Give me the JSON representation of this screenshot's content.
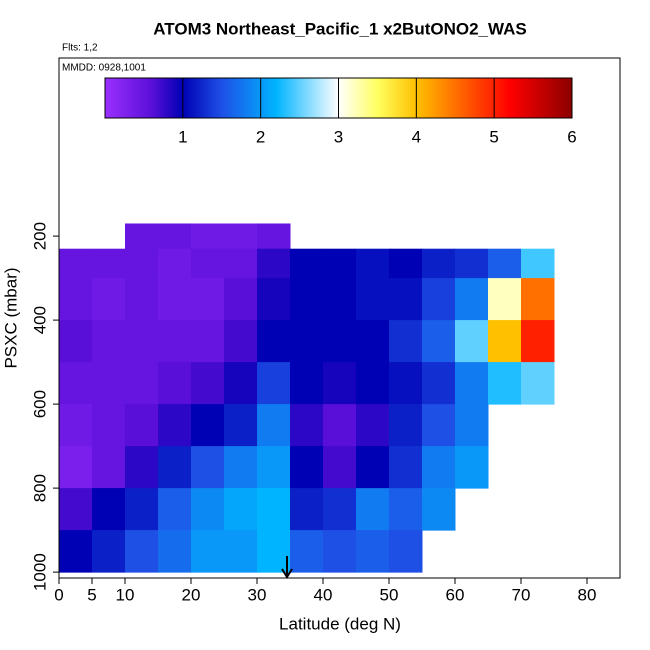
{
  "chart_data": {
    "type": "heatmap",
    "title": "ATOM3 Northeast_Pacific_1 x2ButONO2_WAS",
    "flights_label": "Flts: 1,2",
    "dates_label": "MMDD: 0928,1001",
    "x_label": "Latitude (deg N)",
    "y_label": "PSXC (mbar)",
    "xlim": [
      0,
      85
    ],
    "xticks": [
      0,
      5,
      10,
      20,
      30,
      40,
      50,
      60,
      70,
      80
    ],
    "ylim": [
      1014,
      -224
    ],
    "yticks": [
      200,
      400,
      600,
      800,
      1000
    ],
    "colorbar_lim": [
      0,
      6
    ],
    "colorbar_ticks": [
      1,
      2,
      3,
      4,
      5,
      6
    ],
    "colorscale": [
      {
        "value": 0,
        "color": "#9b30ff"
      },
      {
        "value": 0.6,
        "color": "#5a0fd8"
      },
      {
        "value": 1,
        "color": "#0000b4"
      },
      {
        "value": 1.5,
        "color": "#1e50e6"
      },
      {
        "value": 2.2,
        "color": "#00b4ff"
      },
      {
        "value": 3,
        "color": "#ffffff"
      },
      {
        "value": 3.5,
        "color": "#ffff60"
      },
      {
        "value": 4,
        "color": "#ffc000"
      },
      {
        "value": 4.6,
        "color": "#ff6000"
      },
      {
        "value": 5.2,
        "color": "#ff0000"
      },
      {
        "value": 6,
        "color": "#8b0000"
      }
    ],
    "xbins": [
      0,
      5,
      10,
      15,
      20,
      25,
      30,
      35,
      40,
      45,
      50,
      55,
      60,
      65,
      70,
      75
    ],
    "ybins": [
      170,
      230,
      300,
      400,
      500,
      600,
      700,
      800,
      900,
      1000
    ],
    "z": [
      [
        null,
        null,
        0.5,
        0.5,
        0.4,
        0.4,
        0.5,
        null,
        null,
        null,
        null,
        null,
        null,
        null,
        null
      ],
      [
        0.5,
        0.5,
        0.5,
        0.4,
        0.5,
        0.5,
        0.8,
        1.0,
        1.0,
        1.1,
        1.0,
        1.2,
        1.3,
        1.6,
        2.4
      ],
      [
        0.5,
        0.4,
        0.5,
        0.4,
        0.4,
        0.6,
        0.9,
        1.0,
        1.0,
        1.1,
        1.1,
        1.4,
        1.8,
        3.2,
        4.5
      ],
      [
        0.6,
        0.5,
        0.5,
        0.5,
        0.5,
        0.7,
        1.0,
        1.0,
        1.0,
        1.0,
        1.3,
        1.6,
        2.5,
        4.0,
        5.0
      ],
      [
        0.5,
        0.5,
        0.5,
        0.6,
        0.7,
        0.9,
        1.4,
        1.0,
        0.9,
        1.0,
        1.1,
        1.3,
        1.8,
        2.3,
        2.5
      ],
      [
        0.4,
        0.5,
        0.6,
        0.8,
        1.0,
        1.2,
        1.8,
        0.8,
        0.6,
        0.8,
        1.2,
        1.5,
        1.8,
        null,
        null
      ],
      [
        0.3,
        0.5,
        0.8,
        1.2,
        1.5,
        1.8,
        2.0,
        1.0,
        0.7,
        1.0,
        1.3,
        1.8,
        2.0,
        null,
        null
      ],
      [
        0.7,
        1.0,
        1.2,
        1.6,
        1.9,
        2.1,
        2.2,
        1.2,
        1.3,
        1.8,
        1.6,
        1.9,
        null,
        null,
        null
      ],
      [
        1.0,
        1.2,
        1.5,
        1.7,
        2.0,
        2.0,
        2.2,
        1.6,
        1.5,
        1.6,
        1.5,
        null,
        null,
        null,
        null
      ]
    ]
  }
}
